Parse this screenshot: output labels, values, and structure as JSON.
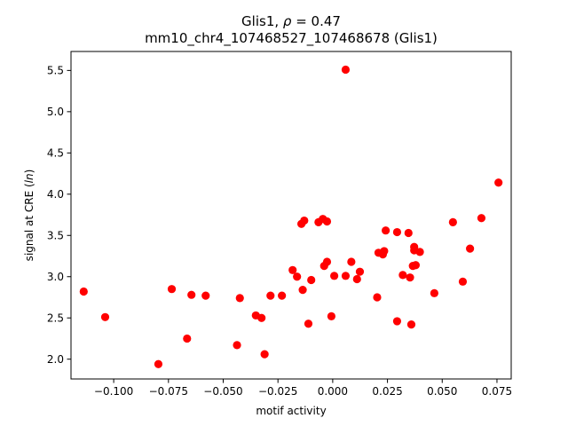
{
  "chart_data": {
    "type": "scatter",
    "title_prefix": "Glis1, ",
    "title_rho_symbol": "ρ",
    "title_rho_value": " = 0.47",
    "subtitle": "mm10_chr4_107468527_107468678 (Glis1)",
    "xlabel": "motif activity",
    "ylabel_prefix": "signal at CRE (",
    "ylabel_italic": "ln",
    "ylabel_suffix": ")",
    "xlim": [
      -0.1195,
      0.0815
    ],
    "ylim": [
      1.76,
      5.73
    ],
    "xticks": [
      -0.1,
      -0.075,
      -0.05,
      -0.025,
      0.0,
      0.025,
      0.05,
      0.075
    ],
    "xtick_labels": [
      "−0.100",
      "−0.075",
      "−0.050",
      "−0.025",
      "0.000",
      "0.025",
      "0.050",
      "0.075"
    ],
    "yticks": [
      2.0,
      2.5,
      3.0,
      3.5,
      4.0,
      4.5,
      5.0,
      5.5
    ],
    "ytick_labels": [
      "2.0",
      "2.5",
      "3.0",
      "3.5",
      "4.0",
      "4.5",
      "5.0",
      "5.5"
    ],
    "point_color": "#ff0000",
    "points": [
      {
        "x": -0.1137,
        "y": 2.82
      },
      {
        "x": -0.1039,
        "y": 2.51
      },
      {
        "x": -0.0796,
        "y": 1.94
      },
      {
        "x": -0.0735,
        "y": 2.85
      },
      {
        "x": -0.0665,
        "y": 2.25
      },
      {
        "x": -0.0645,
        "y": 2.78
      },
      {
        "x": -0.058,
        "y": 2.77
      },
      {
        "x": -0.0437,
        "y": 2.17
      },
      {
        "x": -0.0424,
        "y": 2.74
      },
      {
        "x": -0.0351,
        "y": 2.53
      },
      {
        "x": -0.0325,
        "y": 2.5
      },
      {
        "x": -0.0311,
        "y": 2.06
      },
      {
        "x": -0.0284,
        "y": 2.77
      },
      {
        "x": -0.0232,
        "y": 2.77
      },
      {
        "x": -0.0183,
        "y": 3.08
      },
      {
        "x": -0.0163,
        "y": 3.0
      },
      {
        "x": -0.0143,
        "y": 3.64
      },
      {
        "x": -0.0137,
        "y": 2.84
      },
      {
        "x": -0.013,
        "y": 3.68
      },
      {
        "x": -0.0111,
        "y": 2.43
      },
      {
        "x": -0.0098,
        "y": 2.96
      },
      {
        "x": -0.0065,
        "y": 3.66
      },
      {
        "x": -0.0045,
        "y": 3.7
      },
      {
        "x": -0.0039,
        "y": 3.13
      },
      {
        "x": -0.0026,
        "y": 3.67
      },
      {
        "x": -0.0026,
        "y": 3.18
      },
      {
        "x": -0.0006,
        "y": 2.52
      },
      {
        "x": 0.0007,
        "y": 3.01
      },
      {
        "x": 0.0059,
        "y": 5.51
      },
      {
        "x": 0.0059,
        "y": 3.01
      },
      {
        "x": 0.0085,
        "y": 3.18
      },
      {
        "x": 0.0111,
        "y": 2.97
      },
      {
        "x": 0.0124,
        "y": 3.06
      },
      {
        "x": 0.0203,
        "y": 2.75
      },
      {
        "x": 0.0209,
        "y": 3.29
      },
      {
        "x": 0.0229,
        "y": 3.27
      },
      {
        "x": 0.0235,
        "y": 3.31
      },
      {
        "x": 0.0242,
        "y": 3.56
      },
      {
        "x": 0.0294,
        "y": 2.46
      },
      {
        "x": 0.0294,
        "y": 3.54
      },
      {
        "x": 0.032,
        "y": 3.02
      },
      {
        "x": 0.0346,
        "y": 3.53
      },
      {
        "x": 0.0353,
        "y": 2.99
      },
      {
        "x": 0.0359,
        "y": 2.42
      },
      {
        "x": 0.0366,
        "y": 3.13
      },
      {
        "x": 0.0372,
        "y": 3.32
      },
      {
        "x": 0.0372,
        "y": 3.36
      },
      {
        "x": 0.0379,
        "y": 3.14
      },
      {
        "x": 0.0398,
        "y": 3.3
      },
      {
        "x": 0.0464,
        "y": 2.8
      },
      {
        "x": 0.0549,
        "y": 3.66
      },
      {
        "x": 0.0594,
        "y": 2.94
      },
      {
        "x": 0.0627,
        "y": 3.34
      },
      {
        "x": 0.0679,
        "y": 3.71
      },
      {
        "x": 0.0757,
        "y": 4.14
      }
    ]
  }
}
